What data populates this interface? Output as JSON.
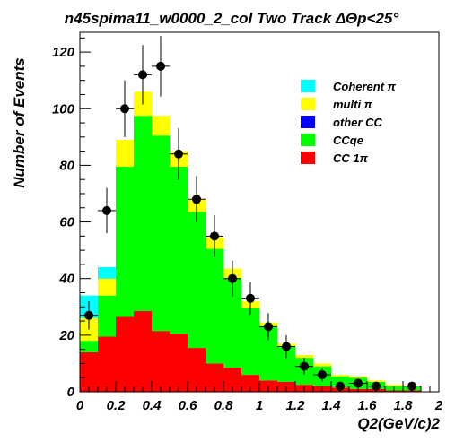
{
  "chart_data": {
    "type": "bar",
    "stacked": true,
    "title": "n45spima11_w0000_2_col Two Track ΔΘp<25°",
    "xlabel": "Q2(GeV/c)2",
    "ylabel": "Number of Events",
    "xlim": [
      0,
      2
    ],
    "ylim": [
      0,
      127
    ],
    "x_ticks": [
      "0",
      "0.2",
      "0.4",
      "0.6",
      "0.8",
      "1",
      "1.2",
      "1.4",
      "1.6",
      "1.8",
      "2"
    ],
    "y_ticks": [
      "0",
      "20",
      "40",
      "60",
      "80",
      "100",
      "120"
    ],
    "legend_position": "top-right",
    "bin_width": 0.1,
    "bin_edges": [
      0,
      0.1,
      0.2,
      0.3,
      0.4,
      0.5,
      0.6,
      0.7,
      0.8,
      0.9,
      1.0,
      1.1,
      1.2,
      1.3,
      1.4,
      1.5,
      1.6,
      1.7,
      1.8,
      1.9,
      2.0
    ],
    "series": [
      {
        "name": "CC 1π",
        "color": "#ff0000",
        "values": [
          14,
          19.5,
          26.5,
          28.5,
          21.5,
          20.5,
          15.5,
          10,
          8.5,
          6,
          4,
          3.5,
          2.5,
          2,
          1.5,
          1,
          1,
          0.5,
          0.5,
          0
        ]
      },
      {
        "name": "CCqe",
        "color": "#00ff00",
        "values": [
          4,
          14.5,
          53,
          69,
          69,
          59,
          48,
          40.5,
          31.5,
          23.5,
          19,
          12.5,
          9.5,
          7,
          4,
          4,
          2.5,
          1.5,
          1.5,
          0
        ]
      },
      {
        "name": "other CC",
        "color": "#0000ff",
        "values": [
          0,
          0,
          0,
          0,
          0,
          0,
          0,
          0,
          0,
          0,
          0,
          0,
          0,
          0,
          0,
          0,
          0,
          0,
          0,
          0
        ]
      },
      {
        "name": "multi π",
        "color": "#ffff00",
        "values": [
          8,
          6,
          9.5,
          8.5,
          7,
          5.5,
          4.5,
          4,
          3.5,
          2.5,
          1.5,
          1,
          1,
          1,
          0.5,
          0.5,
          0.5,
          0.5,
          0,
          0
        ]
      },
      {
        "name": "Coherent π",
        "color": "#00ffff",
        "values": [
          8,
          4,
          0,
          0,
          0,
          0,
          0,
          0,
          0,
          0,
          0,
          0,
          0,
          0,
          0,
          0,
          0,
          0,
          0,
          0
        ]
      }
    ],
    "data_points": [
      {
        "x": 0.05,
        "y": 27,
        "err": 5
      },
      {
        "x": 0.15,
        "y": 64,
        "err": 8
      },
      {
        "x": 0.25,
        "y": 100,
        "err": 10
      },
      {
        "x": 0.35,
        "y": 112,
        "err": 10.5
      },
      {
        "x": 0.45,
        "y": 115,
        "err": 10.7
      },
      {
        "x": 0.55,
        "y": 84,
        "err": 9.2
      },
      {
        "x": 0.65,
        "y": 68,
        "err": 8.2
      },
      {
        "x": 0.75,
        "y": 55,
        "err": 7.4
      },
      {
        "x": 0.85,
        "y": 40,
        "err": 6.3
      },
      {
        "x": 0.95,
        "y": 33,
        "err": 5.7
      },
      {
        "x": 1.05,
        "y": 23,
        "err": 4.8
      },
      {
        "x": 1.15,
        "y": 16,
        "err": 4
      },
      {
        "x": 1.25,
        "y": 9,
        "err": 3
      },
      {
        "x": 1.35,
        "y": 6,
        "err": 2.4
      },
      {
        "x": 1.45,
        "y": 2,
        "err": 1.4
      },
      {
        "x": 1.55,
        "y": 3,
        "err": 1.7
      },
      {
        "x": 1.65,
        "y": 2,
        "err": 1.4
      },
      {
        "x": 1.85,
        "y": 2,
        "err": 1.4
      }
    ]
  }
}
